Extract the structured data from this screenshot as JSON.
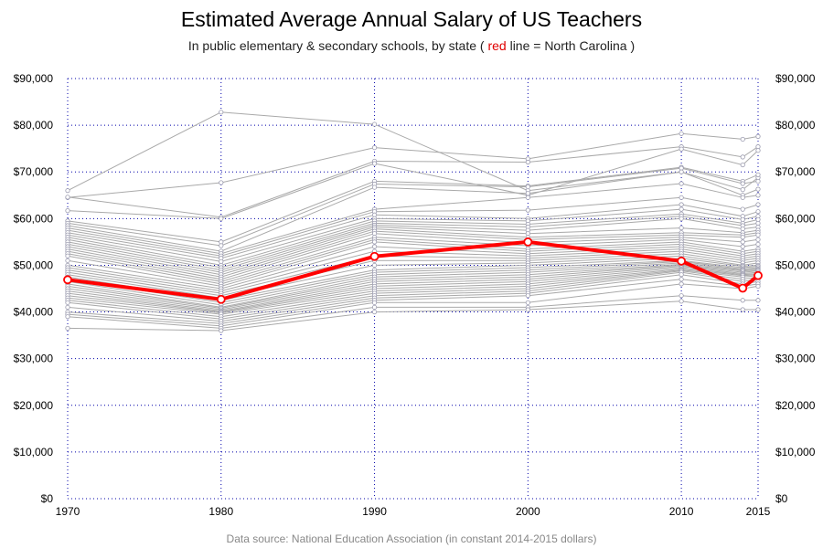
{
  "header": {
    "title": "Estimated Average Annual Salary of US Teachers",
    "subtitle_pre": "In public elementary & secondary schools, by state  ( ",
    "subtitle_red": "red",
    "subtitle_post": " line = North Carolina )"
  },
  "footer": {
    "source": "Data source: National Education Association (in constant 2014-2015 dollars)"
  },
  "colors": {
    "highlight": "#ff0000",
    "others": "#a9a9a9",
    "grid": "#0000aa"
  },
  "chart_data": {
    "type": "line",
    "title": "Estimated Average Annual Salary of US Teachers",
    "subtitle": "In public elementary & secondary schools, by state  ( red line = North Carolina )",
    "x": [
      1970,
      1980,
      1990,
      2000,
      2010,
      2014,
      2015
    ],
    "x_ticks": [
      1970,
      1980,
      1990,
      2000,
      2010,
      2015
    ],
    "xlim": [
      1970,
      2015
    ],
    "ylim": [
      0,
      90000
    ],
    "y_ticks": [
      0,
      10000,
      20000,
      30000,
      40000,
      50000,
      60000,
      70000,
      80000,
      90000
    ],
    "y_tick_labels": [
      "$0",
      "$10,000",
      "$20,000",
      "$30,000",
      "$40,000",
      "$50,000",
      "$60,000",
      "$70,000",
      "$80,000",
      "$90,000"
    ],
    "grid": true,
    "highlight_series": {
      "name": "North Carolina",
      "values": [
        46900,
        42700,
        51900,
        55000,
        50900,
        45100,
        47800
      ]
    },
    "series": [
      {
        "values": [
          66000,
          82800,
          80200,
          66000,
          70000,
          66200,
          68800
        ]
      },
      {
        "values": [
          64500,
          67700,
          75200,
          72800,
          78200,
          77000,
          77600
        ]
      },
      {
        "values": [
          64600,
          60300,
          72300,
          72100,
          75400,
          73200,
          75400
        ]
      },
      {
        "values": [
          61700,
          60000,
          71800,
          65000,
          74900,
          71500,
          74600
        ]
      },
      {
        "values": [
          59500,
          55000,
          68000,
          67000,
          71000,
          68000,
          69400
        ]
      },
      {
        "values": [
          59000,
          54200,
          67400,
          66800,
          70800,
          67500,
          68000
        ]
      },
      {
        "values": [
          58500,
          53000,
          66700,
          65400,
          70000,
          65000,
          66300
        ]
      },
      {
        "values": [
          58000,
          52500,
          62000,
          64500,
          67500,
          64500,
          65000
        ]
      },
      {
        "values": [
          57500,
          52000,
          61500,
          61800,
          64500,
          62000,
          63000
        ]
      },
      {
        "values": [
          57000,
          51500,
          60800,
          60000,
          63000,
          60500,
          61500
        ]
      },
      {
        "values": [
          56500,
          50800,
          60000,
          59500,
          62000,
          59800,
          60500
        ]
      },
      {
        "values": [
          56000,
          50000,
          59500,
          58800,
          61000,
          59000,
          59800
        ]
      },
      {
        "values": [
          55500,
          49500,
          59000,
          58200,
          60500,
          58500,
          59000
        ]
      },
      {
        "values": [
          55000,
          49000,
          58600,
          57500,
          60000,
          57800,
          58200
        ]
      },
      {
        "values": [
          54500,
          48500,
          58200,
          56800,
          58000,
          57000,
          57500
        ]
      },
      {
        "values": [
          54000,
          48000,
          57800,
          56000,
          57000,
          56500,
          57000
        ]
      },
      {
        "values": [
          53500,
          47500,
          57300,
          55500,
          56500,
          56000,
          56500
        ]
      },
      {
        "values": [
          53000,
          47000,
          56800,
          54800,
          56000,
          55000,
          55500
        ]
      },
      {
        "values": [
          52500,
          46500,
          56000,
          54200,
          55500,
          54000,
          54500
        ]
      },
      {
        "values": [
          52000,
          46000,
          55500,
          53500,
          55000,
          53000,
          53500
        ]
      },
      {
        "values": [
          51000,
          45500,
          55000,
          53000,
          54500,
          52500,
          53000
        ]
      },
      {
        "values": [
          50000,
          45000,
          54000,
          52500,
          54000,
          52000,
          52500
        ]
      },
      {
        "values": [
          49500,
          44500,
          53000,
          52000,
          53500,
          51500,
          52000
        ]
      },
      {
        "values": [
          49000,
          44000,
          52000,
          51500,
          53000,
          51000,
          51500
        ]
      },
      {
        "values": [
          48500,
          43500,
          51000,
          51000,
          52500,
          50500,
          51000
        ]
      },
      {
        "values": [
          48000,
          43000,
          50000,
          50500,
          52000,
          50000,
          50500
        ]
      },
      {
        "values": [
          47500,
          42500,
          49000,
          50000,
          51500,
          49800,
          50000
        ]
      },
      {
        "values": [
          47000,
          42000,
          48500,
          49500,
          51000,
          49500,
          49800
        ]
      },
      {
        "values": [
          46500,
          41500,
          48000,
          49000,
          50800,
          49200,
          49500
        ]
      },
      {
        "values": [
          46000,
          41000,
          47500,
          48500,
          50500,
          49000,
          49200
        ]
      },
      {
        "values": [
          45500,
          40800,
          47000,
          48000,
          50200,
          48800,
          49000
        ]
      },
      {
        "values": [
          45000,
          40500,
          46500,
          47500,
          50000,
          48500,
          48800
        ]
      },
      {
        "values": [
          44500,
          40200,
          46000,
          47000,
          49800,
          48200,
          48500
        ]
      },
      {
        "values": [
          44000,
          40000,
          45500,
          46500,
          49500,
          48000,
          48200
        ]
      },
      {
        "values": [
          43500,
          39800,
          45000,
          46000,
          49200,
          47800,
          48000
        ]
      },
      {
        "values": [
          43000,
          39500,
          44500,
          45500,
          49000,
          47500,
          47800
        ]
      },
      {
        "values": [
          42500,
          39000,
          44000,
          45000,
          48800,
          47000,
          47500
        ]
      },
      {
        "values": [
          42000,
          38500,
          43500,
          44500,
          48500,
          46500,
          47000
        ]
      },
      {
        "values": [
          41000,
          38000,
          43000,
          44000,
          48000,
          46000,
          46500
        ]
      },
      {
        "values": [
          40000,
          37500,
          42500,
          43500,
          47000,
          45500,
          46000
        ]
      },
      {
        "values": [
          39500,
          37000,
          42000,
          42000,
          46000,
          45000,
          45500
        ]
      },
      {
        "values": [
          39000,
          36500,
          41000,
          41000,
          43500,
          42500,
          42500
        ]
      },
      {
        "values": [
          36500,
          36000,
          40000,
          40500,
          42300,
          40500,
          40500
        ]
      }
    ]
  }
}
